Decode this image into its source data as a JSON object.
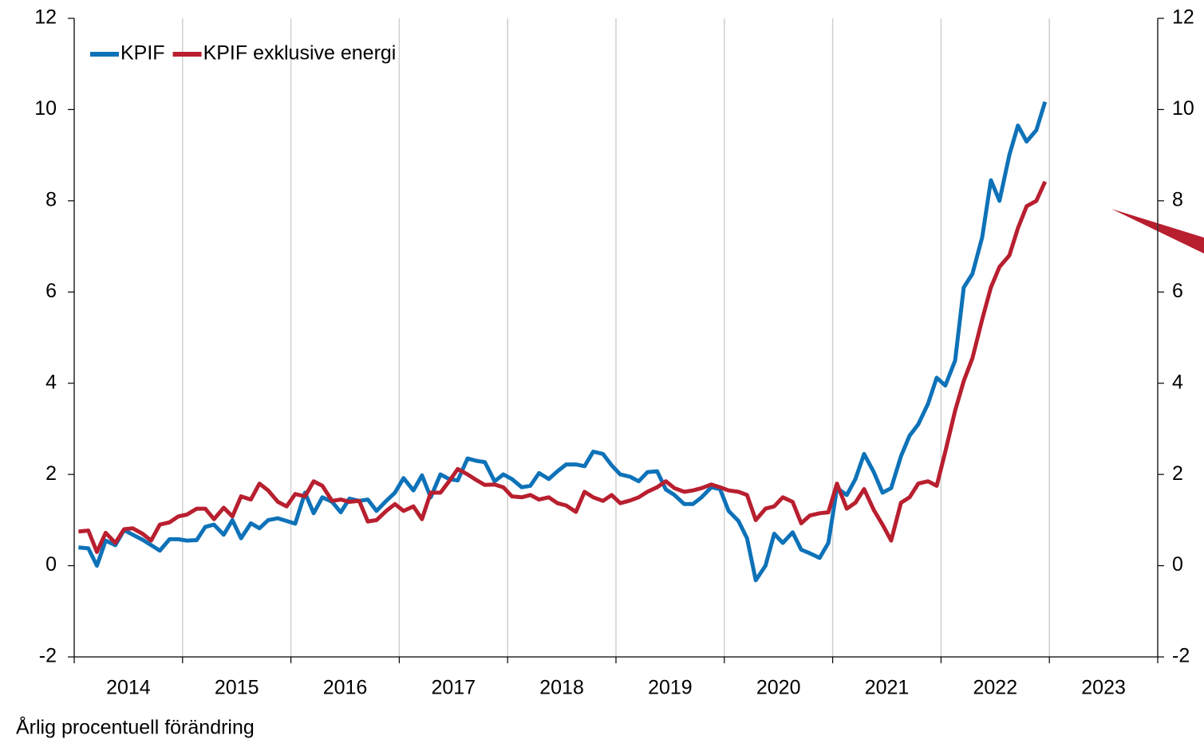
{
  "chart_data": {
    "type": "line",
    "y_label": "Årlig procentuell förändring",
    "xlim": [
      2014,
      2024
    ],
    "ylim": [
      -2,
      12
    ],
    "yticks": [
      -2,
      0,
      2,
      4,
      6,
      8,
      10,
      12
    ],
    "xgrid": [
      2014,
      2015,
      2016,
      2017,
      2018,
      2019,
      2020,
      2021,
      2022,
      2023,
      2024
    ],
    "xticks": [
      {
        "value": 2014.5,
        "label": "2014"
      },
      {
        "value": 2015.5,
        "label": "2015"
      },
      {
        "value": 2016.5,
        "label": "2016"
      },
      {
        "value": 2017.5,
        "label": "2017"
      },
      {
        "value": 2018.5,
        "label": "2018"
      },
      {
        "value": 2019.5,
        "label": "2019"
      },
      {
        "value": 2020.5,
        "label": "2020"
      },
      {
        "value": 2021.5,
        "label": "2021"
      },
      {
        "value": 2022.5,
        "label": "2022"
      },
      {
        "value": 2023.5,
        "label": "2023"
      }
    ],
    "grid": true,
    "legend": "top-left",
    "x": [
      2014.04,
      2014.13,
      2014.21,
      2014.29,
      2014.38,
      2014.46,
      2014.54,
      2014.63,
      2014.71,
      2014.79,
      2014.88,
      2014.96,
      2015.04,
      2015.13,
      2015.21,
      2015.29,
      2015.38,
      2015.46,
      2015.54,
      2015.63,
      2015.71,
      2015.79,
      2015.88,
      2015.96,
      2016.04,
      2016.13,
      2016.21,
      2016.29,
      2016.38,
      2016.46,
      2016.54,
      2016.63,
      2016.71,
      2016.79,
      2016.88,
      2016.96,
      2017.04,
      2017.13,
      2017.21,
      2017.29,
      2017.38,
      2017.46,
      2017.54,
      2017.63,
      2017.71,
      2017.79,
      2017.88,
      2017.96,
      2018.04,
      2018.13,
      2018.21,
      2018.29,
      2018.38,
      2018.46,
      2018.54,
      2018.63,
      2018.71,
      2018.79,
      2018.88,
      2018.96,
      2019.04,
      2019.13,
      2019.21,
      2019.29,
      2019.38,
      2019.46,
      2019.54,
      2019.63,
      2019.71,
      2019.79,
      2019.88,
      2019.96,
      2020.04,
      2020.13,
      2020.21,
      2020.29,
      2020.38,
      2020.46,
      2020.54,
      2020.63,
      2020.71,
      2020.79,
      2020.88,
      2020.96,
      2021.04,
      2021.13,
      2021.21,
      2021.29,
      2021.38,
      2021.46,
      2021.54,
      2021.63,
      2021.71,
      2021.79,
      2021.88,
      2021.96,
      2022.04,
      2022.13,
      2022.21,
      2022.29,
      2022.38,
      2022.46,
      2022.54,
      2022.63,
      2022.71,
      2022.79,
      2022.88,
      2022.96
    ],
    "series": [
      {
        "name": "KPIF",
        "color": "#0e72b8",
        "values": [
          0.4,
          0.38,
          0.0,
          0.55,
          0.45,
          0.78,
          0.68,
          0.57,
          0.45,
          0.33,
          0.58,
          0.58,
          0.55,
          0.56,
          0.85,
          0.9,
          0.68,
          1.0,
          0.6,
          0.93,
          0.82,
          1.0,
          1.04,
          0.98,
          0.92,
          1.6,
          1.15,
          1.5,
          1.4,
          1.17,
          1.47,
          1.42,
          1.45,
          1.2,
          1.42,
          1.6,
          1.92,
          1.65,
          1.98,
          1.5,
          2.0,
          1.9,
          1.87,
          2.35,
          2.3,
          2.27,
          1.85,
          2.0,
          1.9,
          1.72,
          1.75,
          2.03,
          1.9,
          2.07,
          2.22,
          2.22,
          2.18,
          2.5,
          2.45,
          2.2,
          2.0,
          1.95,
          1.85,
          2.05,
          2.07,
          1.67,
          1.55,
          1.35,
          1.35,
          1.5,
          1.72,
          1.68,
          1.2,
          0.98,
          0.6,
          -0.32,
          0.0,
          0.7,
          0.5,
          0.73,
          0.35,
          0.27,
          0.17,
          0.5,
          1.7,
          1.55,
          1.9,
          2.45,
          2.05,
          1.6,
          1.7,
          2.4,
          2.85,
          3.1,
          3.55,
          4.12,
          3.95,
          4.5,
          6.1,
          6.4,
          7.2,
          8.45,
          8.0,
          9.0,
          9.65,
          9.3,
          9.55,
          10.17
        ]
      },
      {
        "name": "KPIF exklusive energi",
        "color": "#b81f2f",
        "values": [
          0.75,
          0.77,
          0.3,
          0.72,
          0.5,
          0.8,
          0.82,
          0.7,
          0.55,
          0.9,
          0.95,
          1.08,
          1.12,
          1.25,
          1.25,
          1.02,
          1.27,
          1.08,
          1.52,
          1.45,
          1.8,
          1.65,
          1.4,
          1.3,
          1.57,
          1.52,
          1.85,
          1.75,
          1.42,
          1.45,
          1.4,
          1.42,
          0.97,
          1.0,
          1.2,
          1.35,
          1.2,
          1.3,
          1.02,
          1.6,
          1.6,
          1.85,
          2.12,
          2.0,
          1.88,
          1.77,
          1.78,
          1.72,
          1.52,
          1.5,
          1.55,
          1.45,
          1.5,
          1.37,
          1.32,
          1.18,
          1.62,
          1.5,
          1.42,
          1.55,
          1.37,
          1.43,
          1.5,
          1.62,
          1.72,
          1.85,
          1.7,
          1.62,
          1.65,
          1.7,
          1.78,
          1.72,
          1.65,
          1.62,
          1.55,
          1.0,
          1.25,
          1.3,
          1.5,
          1.4,
          0.93,
          1.1,
          1.15,
          1.17,
          1.8,
          1.25,
          1.38,
          1.68,
          1.22,
          0.9,
          0.55,
          1.38,
          1.5,
          1.8,
          1.85,
          1.75,
          2.5,
          3.4,
          4.05,
          4.55,
          5.4,
          6.1,
          6.55,
          6.8,
          7.4,
          7.88,
          8.0,
          8.42
        ]
      }
    ]
  }
}
